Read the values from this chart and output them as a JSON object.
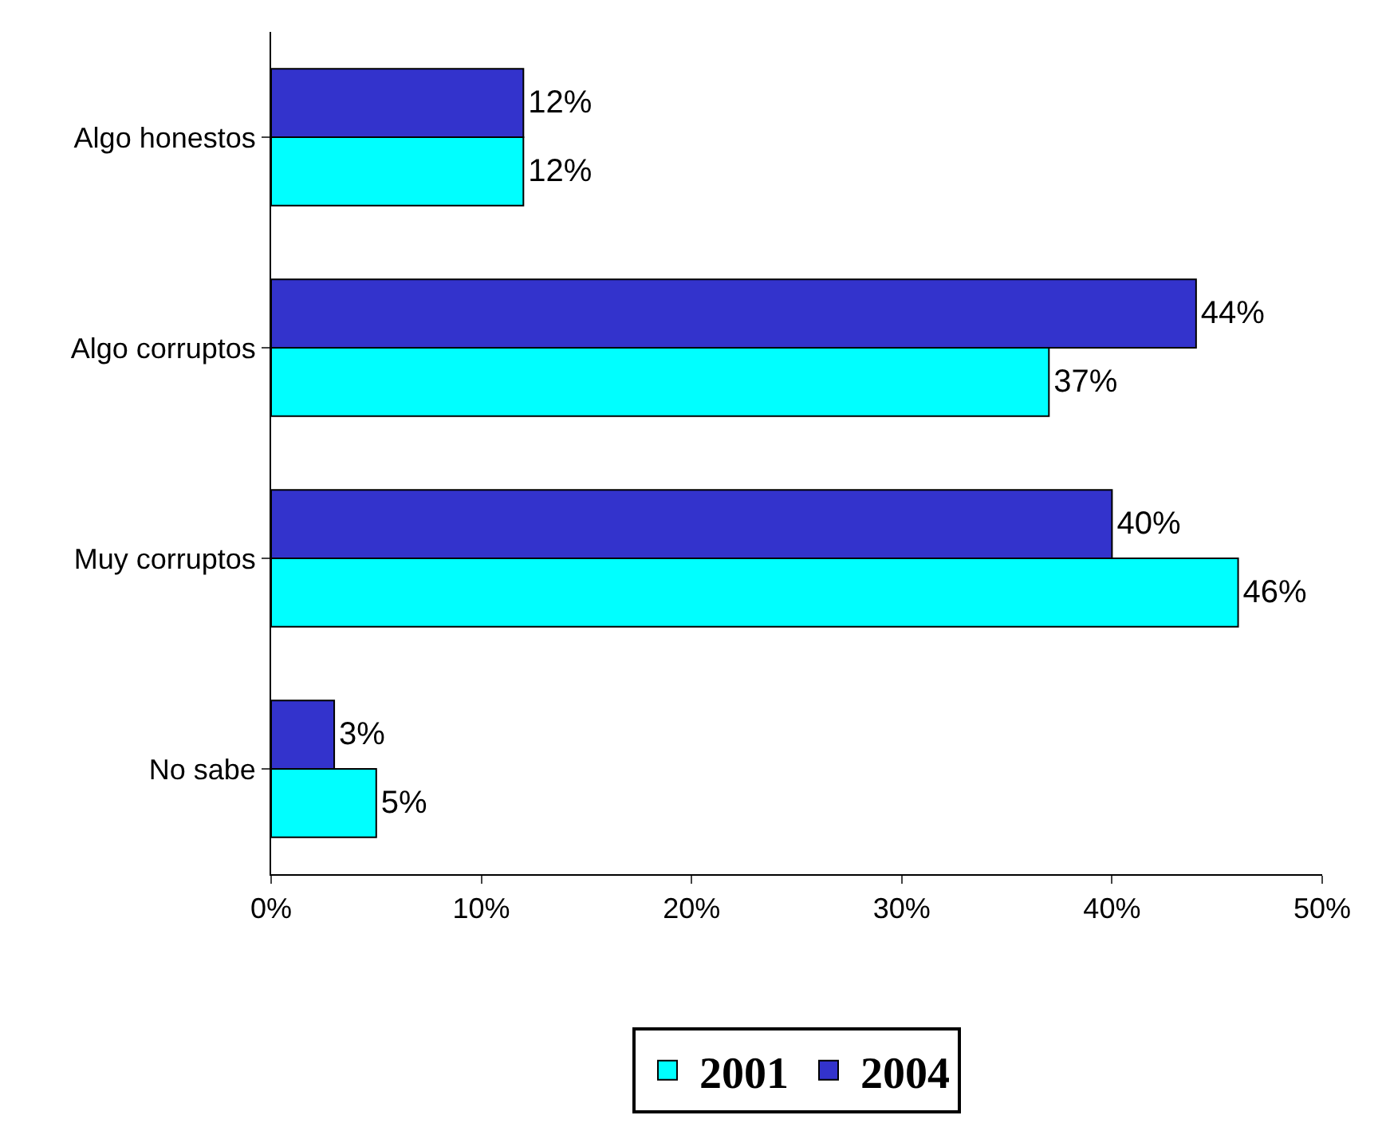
{
  "chart_data": {
    "type": "bar",
    "orientation": "horizontal",
    "categories": [
      "Algo honestos",
      "Algo corruptos",
      "Muy corruptos",
      "No sabe"
    ],
    "series": [
      {
        "name": "2001",
        "color": "#00ffff",
        "values": [
          12,
          37,
          46,
          5
        ],
        "value_labels": [
          "12%",
          "37%",
          "46%",
          "5%"
        ]
      },
      {
        "name": "2004",
        "color": "#3333cc",
        "values": [
          12,
          44,
          40,
          3
        ],
        "value_labels": [
          "12%",
          "44%",
          "40%",
          "3%"
        ]
      }
    ],
    "xlim": [
      0,
      50
    ],
    "xticks": [
      {
        "value": 0,
        "label": "0%"
      },
      {
        "value": 10,
        "label": "10%"
      },
      {
        "value": 20,
        "label": "20%"
      },
      {
        "value": 30,
        "label": "30%"
      },
      {
        "value": 40,
        "label": "40%"
      },
      {
        "value": 50,
        "label": "50%"
      }
    ],
    "legend": "bottom"
  }
}
